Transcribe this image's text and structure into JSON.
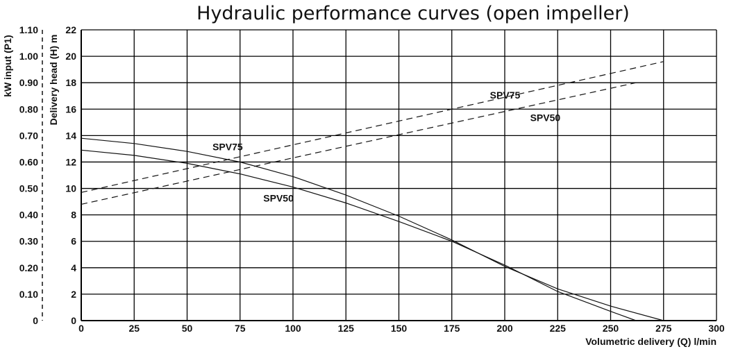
{
  "chart_data": {
    "type": "line",
    "title": "Hydraulic performance curves (open impeller)",
    "xlabel": "Volumetric delivery (Q) l/min",
    "ylabel_head": "Delivery head (H) m",
    "ylabel_power": "kW input (P1)",
    "x_ticks": [
      "0",
      "25",
      "50",
      "75",
      "100",
      "125",
      "150",
      "175",
      "200",
      "225",
      "250",
      "275",
      "300"
    ],
    "head_ticks": [
      "0",
      "2",
      "4",
      "6",
      "8",
      "10",
      "12",
      "14",
      "16",
      "18",
      "20",
      "22"
    ],
    "power_ticks": [
      "0",
      "0.10",
      "0.20",
      "0.30",
      "0.40",
      "0.50",
      "0.60",
      "0.70",
      "0.80",
      "0.90",
      "1.00",
      "1.10"
    ],
    "xlim": [
      0,
      300
    ],
    "ylim_head": [
      0,
      22
    ],
    "ylim_power": [
      0,
      1.1
    ],
    "grid": true,
    "series": [
      {
        "name": "SPV75",
        "kind": "head",
        "style": "solid",
        "x": [
          0,
          25,
          50,
          75,
          100,
          125,
          150,
          175,
          200,
          225,
          250,
          275
        ],
        "y": [
          13.8,
          13.4,
          12.8,
          12.0,
          10.9,
          9.5,
          7.9,
          6.1,
          4.1,
          2.4,
          1.1,
          0
        ]
      },
      {
        "name": "SPV50",
        "kind": "head",
        "style": "solid",
        "x": [
          0,
          25,
          50,
          75,
          100,
          125,
          150,
          175,
          200,
          225,
          250,
          262
        ],
        "y": [
          12.9,
          12.5,
          11.9,
          11.1,
          10.1,
          8.9,
          7.5,
          6.0,
          4.2,
          2.2,
          0.7,
          0
        ]
      },
      {
        "name": "SPV75",
        "kind": "power",
        "style": "dashed",
        "x": [
          0,
          275
        ],
        "y": [
          0.485,
          0.98
        ]
      },
      {
        "name": "SPV50",
        "kind": "power",
        "style": "dashed",
        "x": [
          0,
          262
        ],
        "y": [
          0.44,
          0.9
        ]
      }
    ],
    "annotations": [
      {
        "text": "SPV75",
        "target": "head",
        "x": 62,
        "y": 12.9
      },
      {
        "text": "SPV50",
        "target": "head",
        "x": 86,
        "y": 9.0
      },
      {
        "text": "SPV75",
        "target": "power",
        "x": 193,
        "y": 0.84
      },
      {
        "text": "SPV50",
        "target": "power",
        "x": 212,
        "y": 0.755
      }
    ],
    "colors": {
      "line": "#111111",
      "grid": "#000000"
    }
  }
}
